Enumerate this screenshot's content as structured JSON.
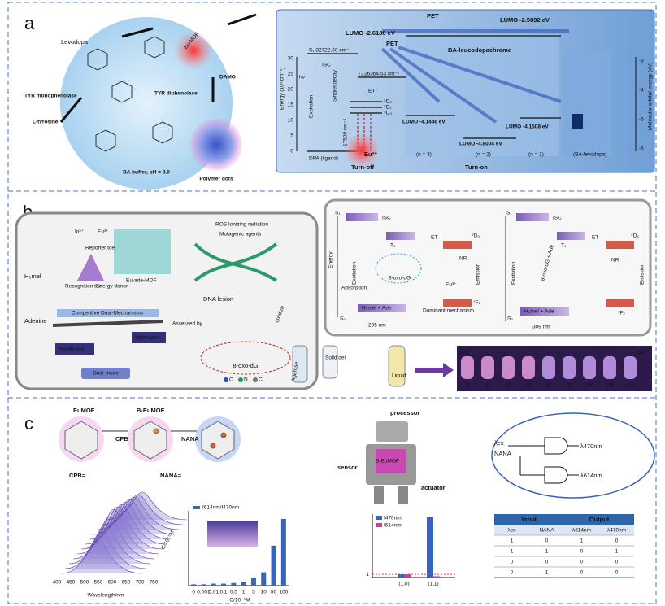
{
  "a": {
    "label": "a",
    "texts": [
      "Levodopa",
      "TYR monophenolase",
      "L-tyrosine",
      "TYR diphenolase",
      "Eu-MOF",
      "DAMO",
      "BA buffer, pH = 8.0",
      "Polymer dots",
      "PET",
      "LUMO -2.6180 eV",
      "LUMO -2.5892 eV",
      "BA-leucodopachrome",
      "PET",
      "S₁ 32722.60 cm⁻¹",
      "ISC",
      "T₁ 26364.53 cm⁻¹",
      "ET",
      "hν",
      "Excitation",
      "Singlet decay",
      "17500 cm⁻¹",
      "⁵D₀",
      "⁵D₁",
      "⁵D₂",
      "Eu³⁺",
      "DPA (ligand)",
      "Turn-off",
      "LUMO -4.1446 eV",
      "LUMO -4.8004 eV",
      "LUMO -4.1508 eV",
      "(n = 3)",
      "(n = 2)",
      "(n = 1)",
      "(BA-levodopa)",
      "Turn-on",
      "Energy (10³ cm⁻¹)",
      "Molecular orbital energy (eV)"
    ],
    "left_ticks": [
      "0",
      "5",
      "10",
      "15",
      "20",
      "25",
      "30"
    ],
    "right_ticks": [
      "-3",
      "-4",
      "-5",
      "-6"
    ]
  },
  "b": {
    "label": "b",
    "texts": [
      "H₃mel",
      "Adenine",
      "In³⁺",
      "Eu³⁺",
      "Reporter toe",
      "Recognition toe",
      "Energy donor",
      "Eu-ade-MOF",
      "Competitive Dual-Mechanisms",
      "Absorption",
      "Hydrogen",
      "Dual-mode",
      "Assessed by",
      "ROS  Ionizing radiation",
      "Mutagenic agents",
      "DNA lesion",
      "Oxidize",
      "8-oxo-dG",
      "O",
      "N",
      "C",
      "S₁",
      "ISC",
      "T₁",
      "ET",
      "⁵D₀",
      "NR",
      "Emission",
      "⁷F₂",
      "Excitation",
      "Absorption",
      "Energy",
      "S₀",
      "H₃mel + Ade",
      "295 nm",
      "Dominant mechanism",
      "Eu³⁺",
      "8-oxo-dG",
      "S₁",
      "ISC",
      "T₁",
      "ET",
      "⁵D₀",
      "NR",
      "Emission",
      "⁷F₂",
      "Excitation",
      "8-oxo-dG + Ade",
      "S₀",
      "H₃mel + Ade",
      "309 nm",
      "Agarose",
      "Solid gel",
      "Liquid",
      "Flat",
      "Top"
    ],
    "strip_ticks": [
      "0",
      "5",
      "10",
      "30",
      "50",
      "75",
      "100",
      "150",
      "200"
    ]
  },
  "c": {
    "label": "c",
    "texts": [
      "EuMOF",
      "B-EuMOF",
      "CPB",
      "NANA",
      "CPB=",
      "NANA=",
      "processor",
      "sensor",
      "B-EuMOF",
      "actuator",
      "λex",
      "NANA",
      "λ470nm",
      "λ614nm",
      "Wavelength/nm",
      "C/10⁻⁵M",
      "C/10⁻⁵M",
      "(1,0)",
      "(1,1)"
    ],
    "spectrum_ticks": [
      "400",
      "450",
      "500",
      "550",
      "600",
      "650",
      "700",
      "750"
    ],
    "ratio_chart": {
      "type": "bar",
      "legend": "I614nm/I470nm",
      "color": "#3a64b8",
      "categories": [
        "0",
        "0.001",
        "0.01",
        "0.1",
        "0.5",
        "1",
        "5",
        "10",
        "50",
        "100"
      ],
      "values": [
        0.02,
        0.02,
        0.03,
        0.03,
        0.04,
        0.06,
        0.12,
        0.2,
        0.6,
        1.0
      ]
    },
    "logic_chart": {
      "type": "bar",
      "ylim": [
        0,
        20
      ],
      "yticks": [
        1
      ],
      "series": [
        {
          "name": "I470nm",
          "color": "#3a64b8",
          "values": [
            1,
            19
          ]
        },
        {
          "name": "I614nm",
          "color": "#d0408a",
          "values": [
            1,
            0.4
          ]
        }
      ]
    },
    "table": {
      "header": [
        "Input",
        "Output"
      ],
      "columns": [
        "λex",
        "NANA",
        "λ614nm",
        "λ470nm"
      ],
      "rows": [
        [
          "1",
          "0",
          "1",
          "0"
        ],
        [
          "1",
          "1",
          "0",
          "1"
        ],
        [
          "0",
          "0",
          "0",
          "0"
        ],
        [
          "0",
          "1",
          "0",
          "0"
        ]
      ]
    }
  }
}
